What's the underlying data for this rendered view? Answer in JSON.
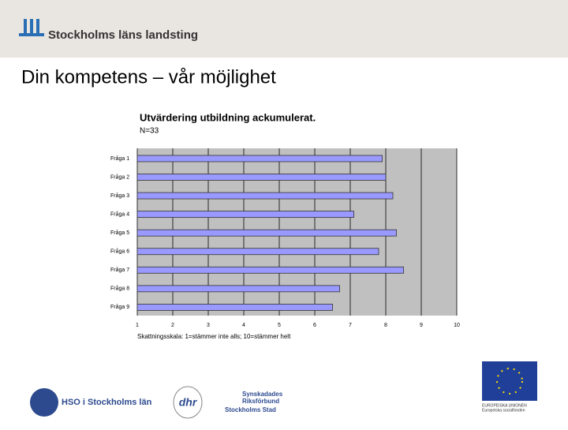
{
  "header": {
    "logo_text": "Stockholms läns landsting"
  },
  "slide_title": "Din kompetens – vår möjlighet",
  "chart_data": {
    "type": "bar",
    "orientation": "horizontal",
    "title": "Utvärdering utbildning ackumulerat.",
    "subtitle": "N=33",
    "x_label": "Skattningsskala: 1=stämmer inte alls; 10=stämmer helt",
    "categories": [
      "Fråga 1",
      "Fråga 2",
      "Fråga 3",
      "Fråga 4",
      "Fråga 5",
      "Fråga 6",
      "Fråga 7",
      "Fråga 8",
      "Fråga 9"
    ],
    "values": [
      7.9,
      8.0,
      8.2,
      7.1,
      8.3,
      7.8,
      8.5,
      6.7,
      6.5
    ],
    "color": "#9999ff",
    "xlim": [
      1,
      10
    ],
    "xticks": [
      1,
      2,
      3,
      4,
      5,
      6,
      7,
      8,
      9,
      10
    ],
    "grid": true
  },
  "footer": {
    "hso": "HSO i Stockholms län",
    "dhr": "dhr",
    "srf": [
      "Synskadades",
      "Riksförbund",
      "Stockholms Stad"
    ],
    "eu": [
      "EUROPEISKA UNIONEN",
      "Europeiska socialfonden"
    ]
  }
}
